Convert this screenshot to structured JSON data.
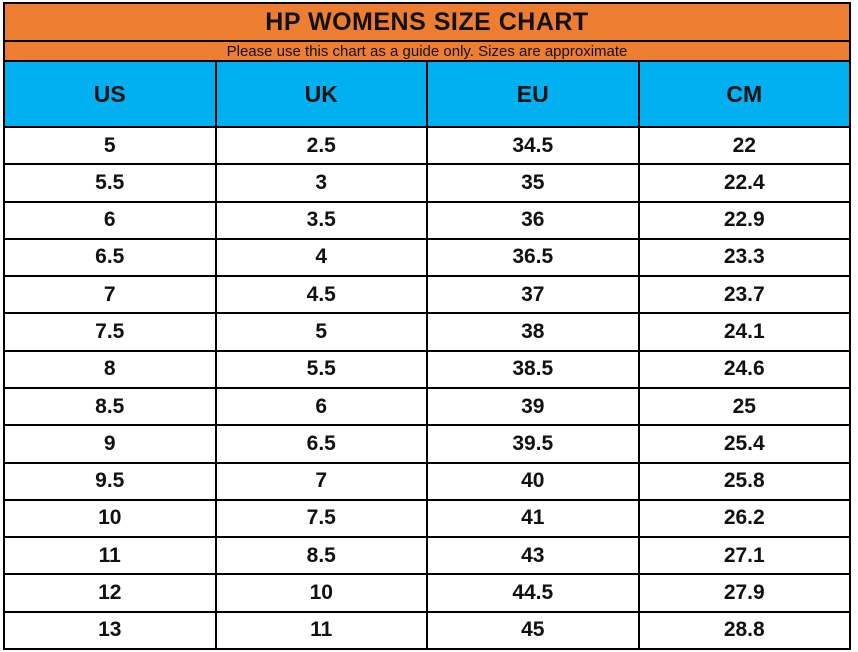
{
  "header": {
    "title": "HP WOMENS SIZE CHART",
    "subtitle": "Please use this chart as a guide only. Sizes are approximate"
  },
  "table": {
    "columns": [
      "US",
      "UK",
      "EU",
      "CM"
    ],
    "rows": [
      [
        "5",
        "2.5",
        "34.5",
        "22"
      ],
      [
        "5.5",
        "3",
        "35",
        "22.4"
      ],
      [
        "6",
        "3.5",
        "36",
        "22.9"
      ],
      [
        "6.5",
        "4",
        "36.5",
        "23.3"
      ],
      [
        "7",
        "4.5",
        "37",
        "23.7"
      ],
      [
        "7.5",
        "5",
        "38",
        "24.1"
      ],
      [
        "8",
        "5.5",
        "38.5",
        "24.6"
      ],
      [
        "8.5",
        "6",
        "39",
        "25"
      ],
      [
        "9",
        "6.5",
        "39.5",
        "25.4"
      ],
      [
        "9.5",
        "7",
        "40",
        "25.8"
      ],
      [
        "10",
        "7.5",
        "41",
        "26.2"
      ],
      [
        "11",
        "8.5",
        "43",
        "27.1"
      ],
      [
        "12",
        "10",
        "44.5",
        "27.9"
      ],
      [
        "13",
        "11",
        "45",
        "28.8"
      ]
    ]
  },
  "colors": {
    "accent-orange": "#ED7D31",
    "accent-blue": "#00B0F0",
    "border-black": "#000000",
    "text": "#111111"
  }
}
